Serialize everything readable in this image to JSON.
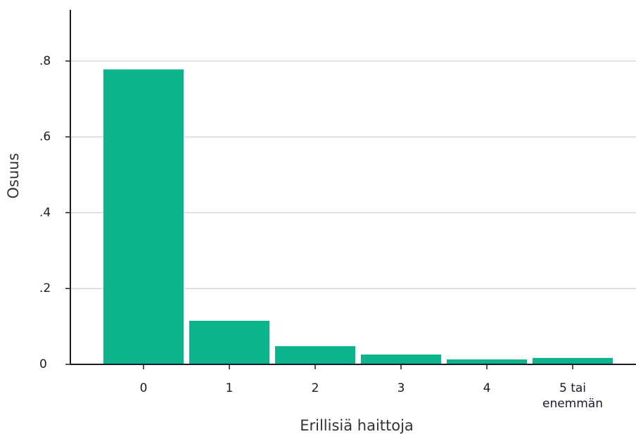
{
  "chart_data": {
    "type": "bar",
    "x_label": "Erillisiä haittoja",
    "y_label": "Osuus",
    "categories": [
      "0",
      "1",
      "2",
      "3",
      "4",
      "5 tai enemmän"
    ],
    "values": [
      0.778,
      0.115,
      0.048,
      0.026,
      0.013,
      0.017
    ],
    "color": "#0bb48b",
    "ylim": [
      0,
      0.935
    ],
    "yticks": [
      0,
      {
        "value": 0.2,
        "label": ".2"
      },
      {
        "value": 0.4,
        "label": ".4"
      },
      {
        "value": 0.6,
        "label": ".6"
      },
      {
        "value": 0.8,
        "label": ".8"
      }
    ],
    "grid": true
  }
}
